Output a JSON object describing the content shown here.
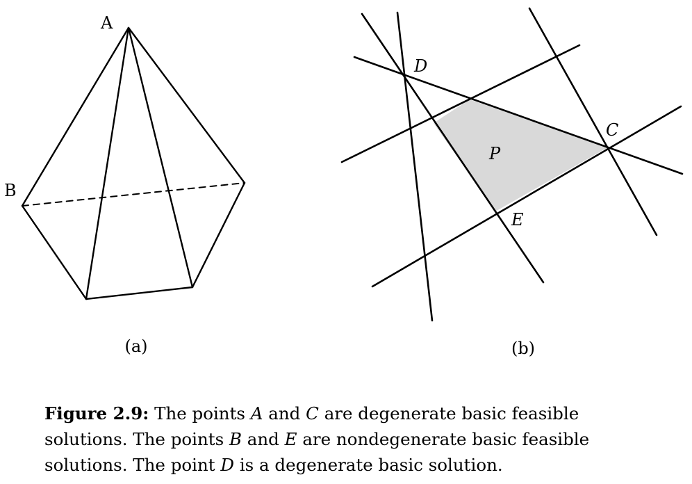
{
  "figure": {
    "panel_a": {
      "sublabel": "(a)",
      "vertex_labels": {
        "A": "A",
        "B": "B"
      }
    },
    "panel_b": {
      "sublabel": "(b)",
      "point_labels": {
        "D": "D",
        "C": "C",
        "E": "E",
        "P": "P"
      },
      "region_color": "#d9d9d9"
    }
  },
  "caption": {
    "heading": "Figure 2.9:",
    "segments": [
      {
        "text": " The points ",
        "italic": false
      },
      {
        "text": "A",
        "italic": true
      },
      {
        "text": " and ",
        "italic": false
      },
      {
        "text": "C",
        "italic": true
      },
      {
        "text": " are degenerate basic feasible solutions. The points ",
        "italic": false
      },
      {
        "text": "B",
        "italic": true
      },
      {
        "text": " and ",
        "italic": false
      },
      {
        "text": "E",
        "italic": true
      },
      {
        "text": " are nondegenerate basic feasible solutions. The point ",
        "italic": false
      },
      {
        "text": "D",
        "italic": true
      },
      {
        "text": " is a degenerate basic solution.",
        "italic": false
      }
    ]
  }
}
